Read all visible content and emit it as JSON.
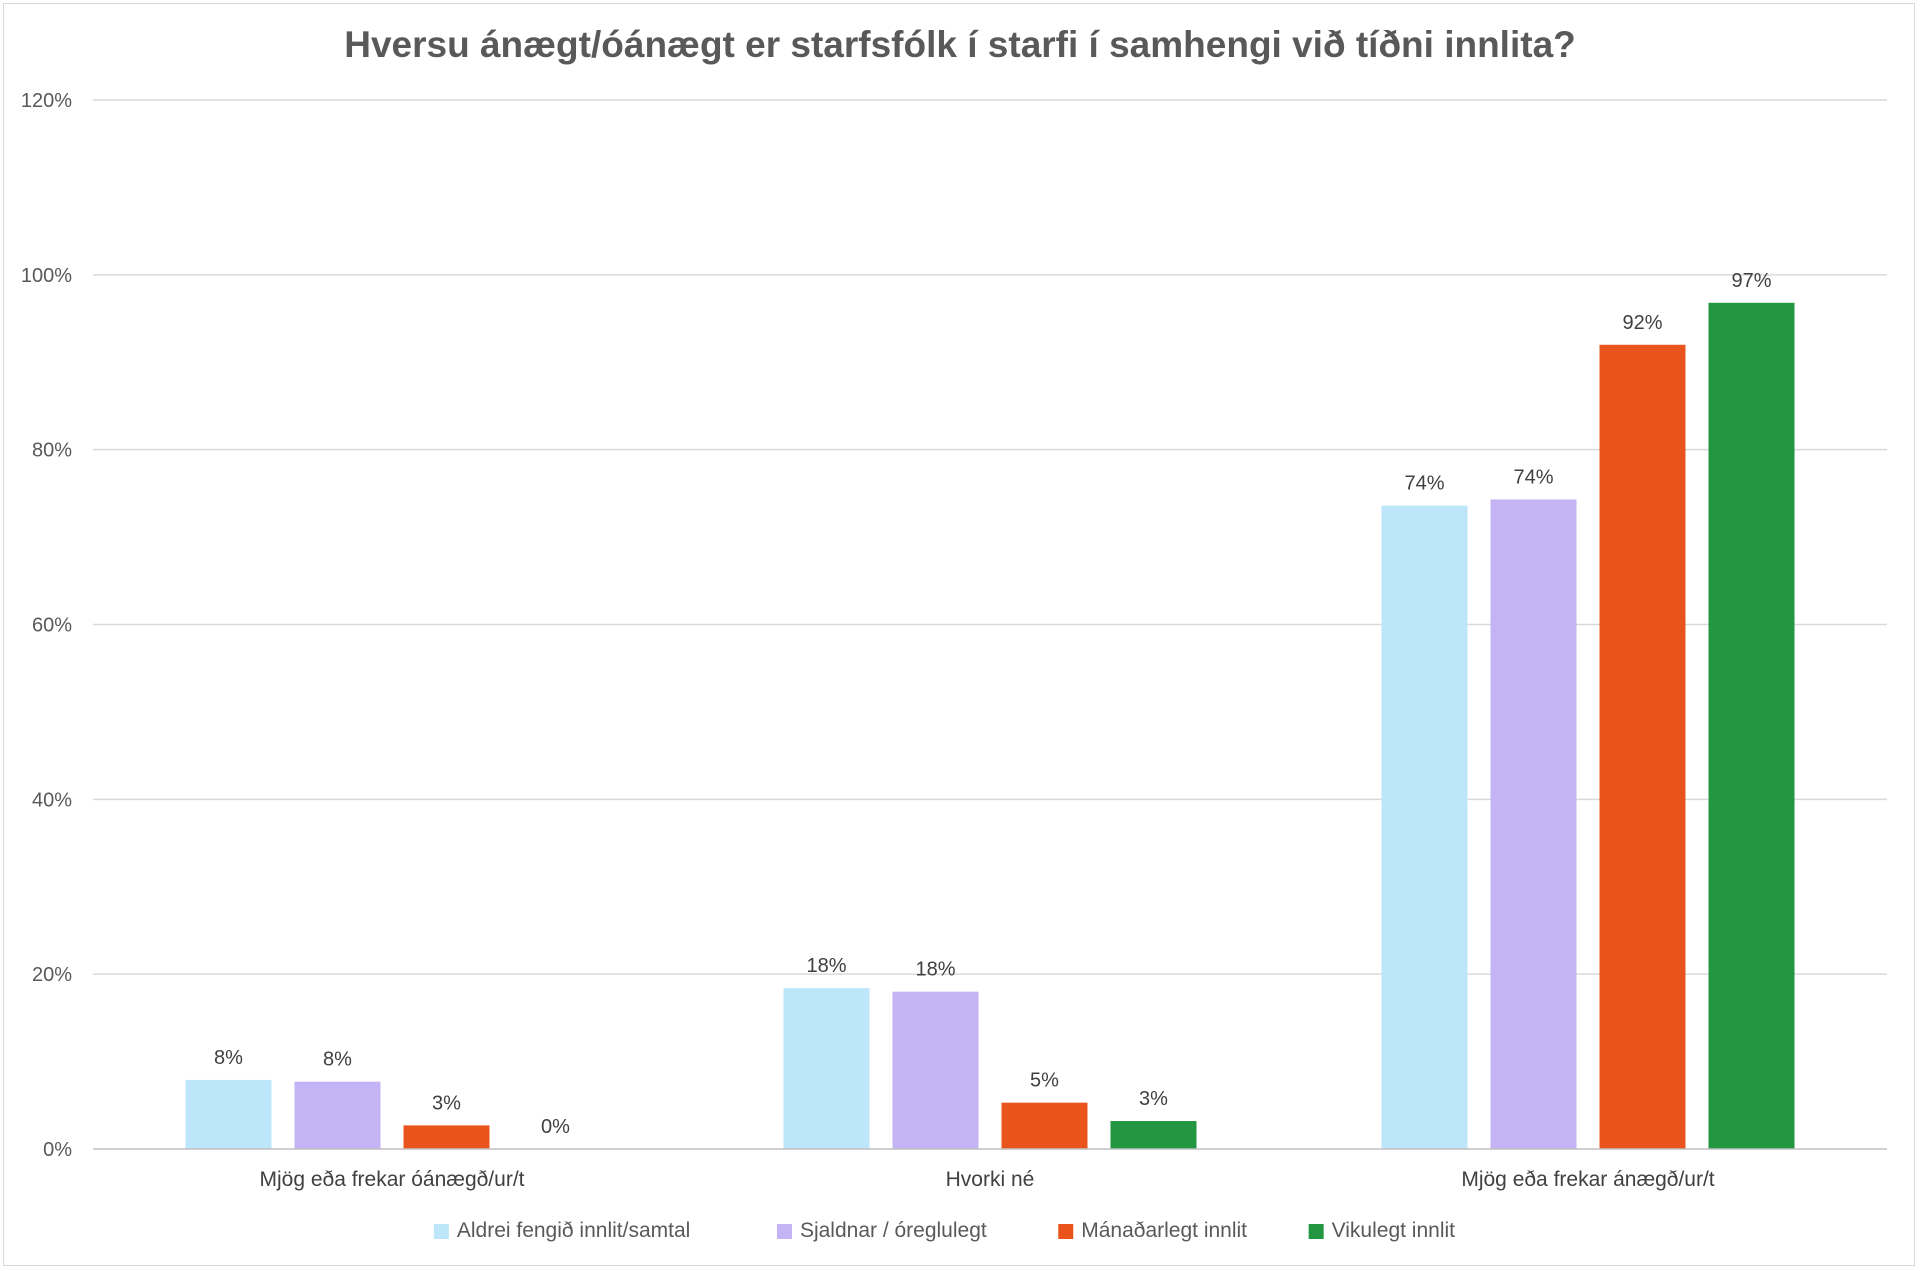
{
  "chart_data": {
    "type": "bar",
    "title": "Hversu ánægt/óánægt er starfsfólk í starfi í samhengi við tíðni innlita?",
    "xlabel": "",
    "ylabel": "",
    "ylim": [
      0,
      120
    ],
    "y_ticks": [
      0,
      20,
      40,
      60,
      80,
      100,
      120
    ],
    "y_tick_labels": [
      "0%",
      "20%",
      "40%",
      "60%",
      "80%",
      "100%",
      "120%"
    ],
    "grid": true,
    "legend_position": "bottom",
    "categories": [
      "Mjög eða frekar óánægð/ur/t",
      "Hvorki né",
      "Mjög eða frekar ánægð/ur/t"
    ],
    "series": [
      {
        "name": "Aldrei fengið innlit/samtal",
        "color": "#bde6fb",
        "values": [
          7.9,
          18.4,
          73.6
        ],
        "labels": [
          "8%",
          "18%",
          "74%"
        ]
      },
      {
        "name": "Sjaldnar / óreglulegt",
        "color": "#c4b3f5",
        "values": [
          7.7,
          18.0,
          74.3
        ],
        "labels": [
          "8%",
          "18%",
          "74%"
        ]
      },
      {
        "name": "Mánaðarlegt innlit",
        "color": "#e8541b",
        "values": [
          2.7,
          5.3,
          92.0
        ],
        "labels": [
          "3%",
          "5%",
          "92%"
        ]
      },
      {
        "name": "Vikulegt innlit",
        "color": "#229641",
        "values": [
          0,
          3.2,
          96.8
        ],
        "labels": [
          "0%",
          "3%",
          "97%"
        ]
      }
    ]
  }
}
